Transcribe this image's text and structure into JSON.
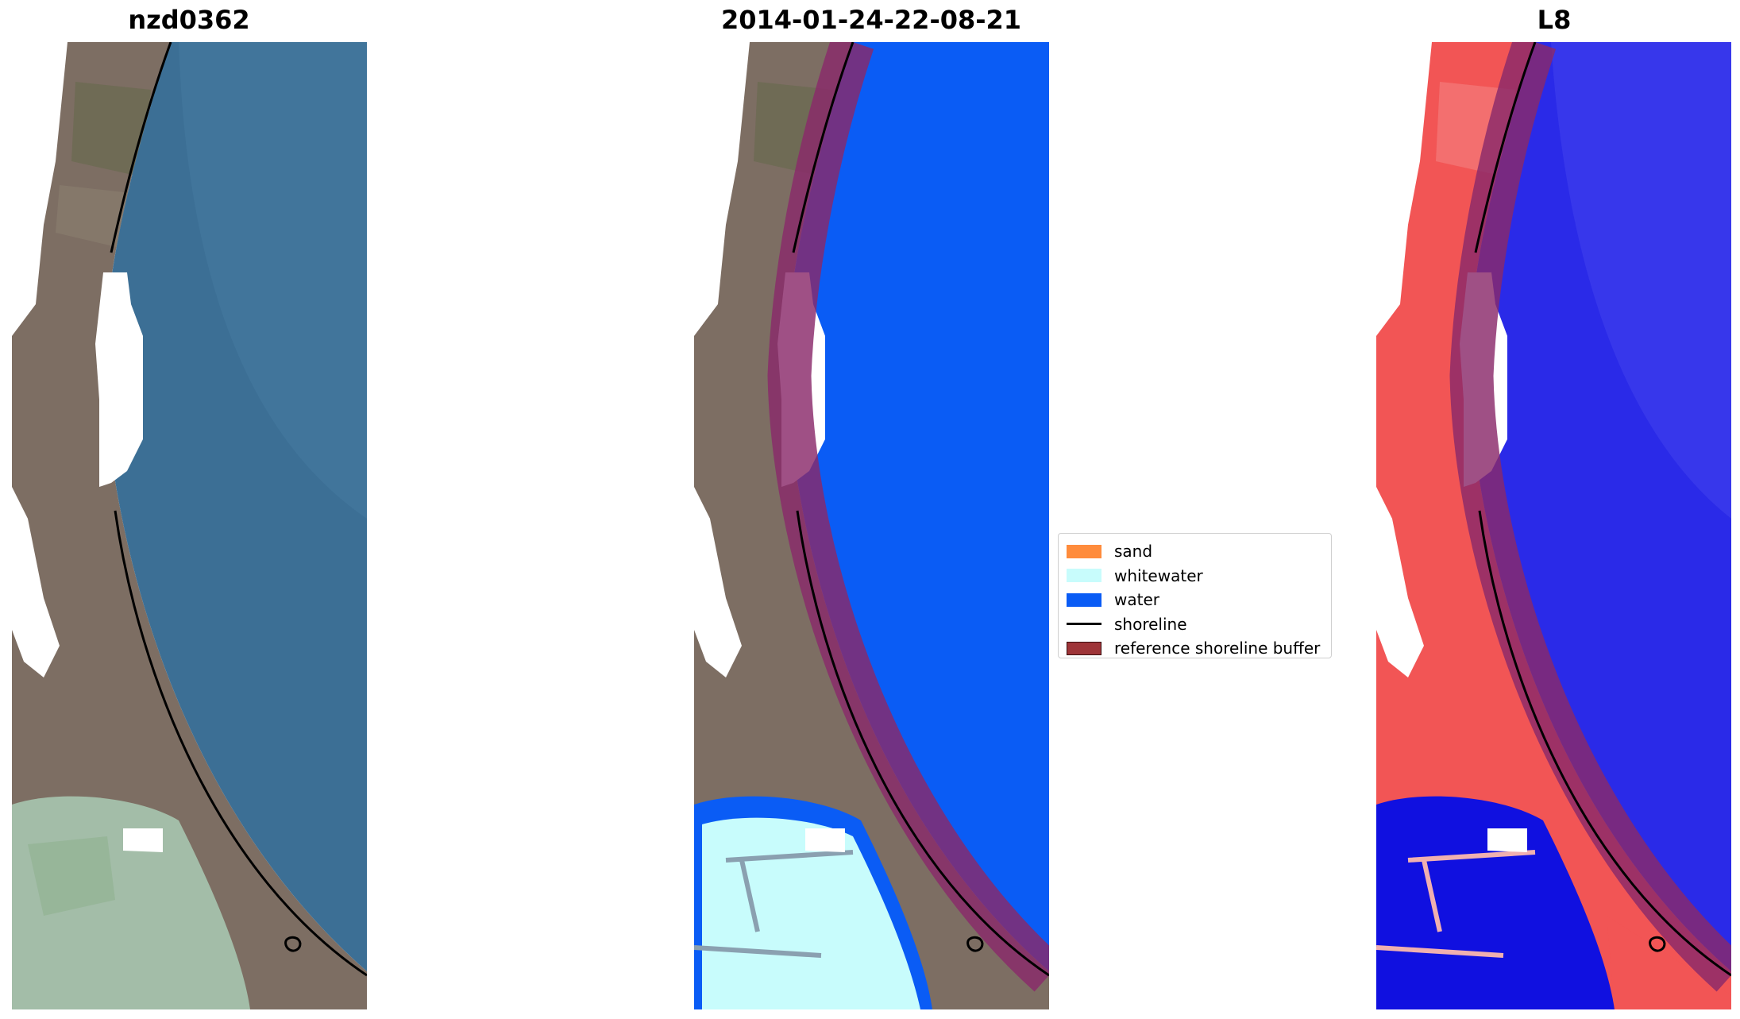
{
  "panels": [
    {
      "title": "nzd0362",
      "kind": "rgb"
    },
    {
      "title": "2014-01-24-22-08-21",
      "kind": "classified"
    },
    {
      "title": "L8",
      "kind": "index"
    }
  ],
  "legend": {
    "entries": [
      {
        "label": "sand",
        "color": "#ff8c3c",
        "type": "patch"
      },
      {
        "label": "whitewater",
        "color": "#c8fcfc",
        "type": "patch"
      },
      {
        "label": "water",
        "color": "#0a5cf5",
        "type": "patch"
      },
      {
        "label": "shoreline",
        "color": "#000000",
        "type": "line"
      },
      {
        "label": "reference shoreline buffer",
        "color": "#9e3438",
        "type": "patch"
      }
    ]
  },
  "colors": {
    "ocean_rgb": "#3c6f95",
    "land_rgb": "#7d6e63",
    "lagoon_rgb": "#a3bda8",
    "water_class": "#0a5cf5",
    "whitewater_class": "#c8fcfc",
    "buffer": "#8a2a6a",
    "land_index": "#f25555",
    "water_index": "#2a2ae8",
    "cloud": "#ffffff"
  }
}
